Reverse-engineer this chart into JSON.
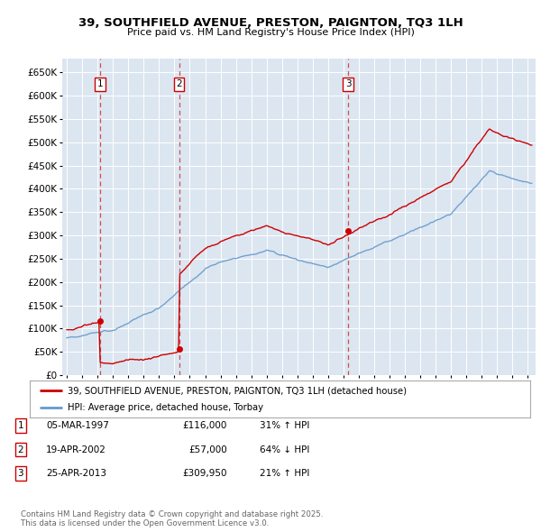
{
  "title": "39, SOUTHFIELD AVENUE, PRESTON, PAIGNTON, TQ3 1LH",
  "subtitle": "Price paid vs. HM Land Registry's House Price Index (HPI)",
  "background_color": "#dce6f1",
  "plot_bg_color": "#dce6f1",
  "ylim": [
    0,
    680000
  ],
  "yticks": [
    0,
    50000,
    100000,
    150000,
    200000,
    250000,
    300000,
    350000,
    400000,
    450000,
    500000,
    550000,
    600000,
    650000
  ],
  "xlim_start": 1994.7,
  "xlim_end": 2025.5,
  "sales": [
    {
      "year": 1997.17,
      "price": 116000,
      "label": "1"
    },
    {
      "year": 2002.3,
      "price": 57000,
      "label": "2"
    },
    {
      "year": 2013.32,
      "price": 309950,
      "label": "3"
    }
  ],
  "legend_line1": "39, SOUTHFIELD AVENUE, PRESTON, PAIGNTON, TQ3 1LH (detached house)",
  "legend_line2": "HPI: Average price, detached house, Torbay",
  "table_entries": [
    {
      "num": "1",
      "date": "05-MAR-1997",
      "price": "£116,000",
      "change": "31% ↑ HPI"
    },
    {
      "num": "2",
      "date": "19-APR-2002",
      "price": "£57,000",
      "change": "64% ↓ HPI"
    },
    {
      "num": "3",
      "date": "25-APR-2013",
      "price": "£309,950",
      "change": "21% ↑ HPI"
    }
  ],
  "footnote": "Contains HM Land Registry data © Crown copyright and database right 2025.\nThis data is licensed under the Open Government Licence v3.0.",
  "red_color": "#cc0000",
  "blue_color": "#6699cc",
  "dashed_color": "#cc3333"
}
